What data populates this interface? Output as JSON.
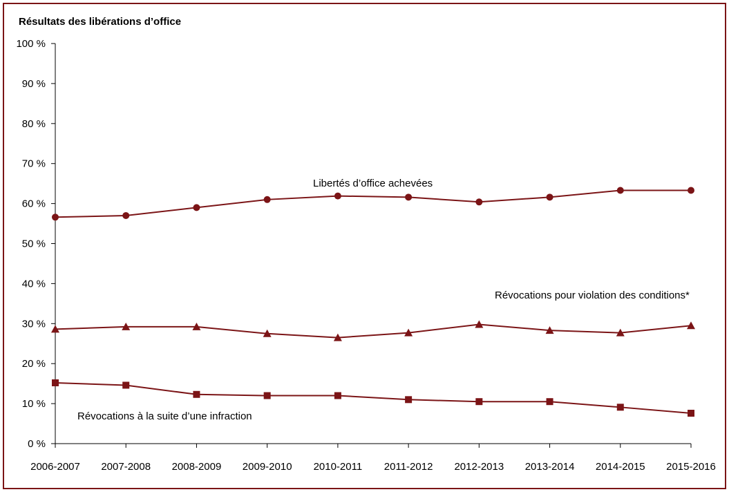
{
  "chart_data": {
    "type": "line",
    "title": "Résultats des libérations d’office",
    "categories": [
      "2006-2007",
      "2007-2008",
      "2008-2009",
      "2009-2010",
      "2010-2011",
      "2011-2012",
      "2012-2013",
      "2013-2014",
      "2014-2015",
      "2015-2016"
    ],
    "ylim": [
      0,
      100
    ],
    "yticks": [
      0,
      10,
      20,
      30,
      40,
      50,
      60,
      70,
      80,
      90,
      100
    ],
    "ytick_labels": [
      "0 %",
      "10 %",
      "20 %",
      "30 %",
      "40 %",
      "50 %",
      "60 %",
      "70 %",
      "80 %",
      "90 %",
      "100 %"
    ],
    "grid": false,
    "series": [
      {
        "name": "Libertés d’office achevées",
        "marker": "circle",
        "values": [
          56.6,
          57.0,
          59.0,
          61.0,
          61.9,
          61.6,
          60.4,
          61.6,
          63.3,
          63.3
        ]
      },
      {
        "name": "Révocations pour violation des conditions*",
        "marker": "triangle",
        "values": [
          28.6,
          29.2,
          29.2,
          27.5,
          26.5,
          27.7,
          29.8,
          28.3,
          27.7,
          29.5
        ]
      },
      {
        "name": "Révocations à la suite d’une infraction",
        "marker": "square",
        "values": [
          15.2,
          14.6,
          12.3,
          12.0,
          12.0,
          11.0,
          10.5,
          10.5,
          9.1,
          7.6
        ]
      }
    ],
    "colors": {
      "line": "#7b1416",
      "axis": "#000000"
    }
  }
}
